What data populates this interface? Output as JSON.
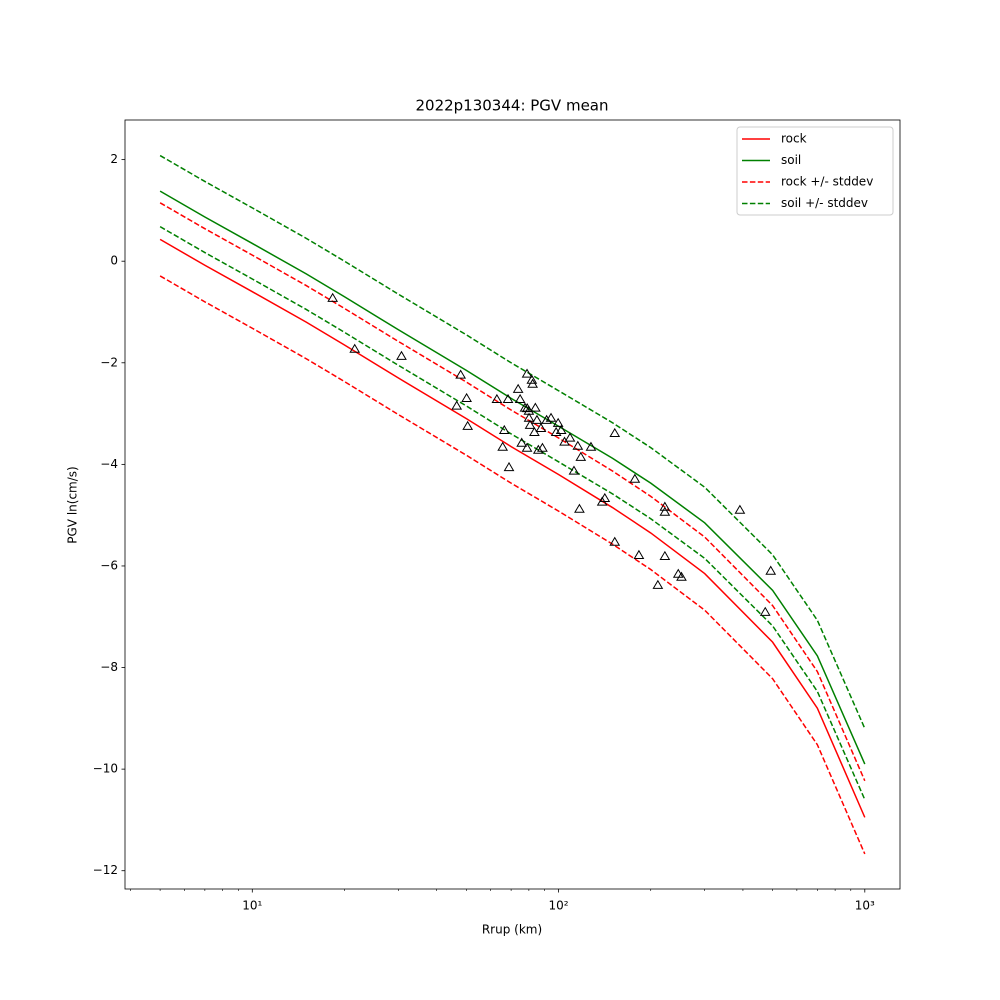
{
  "chart_data": {
    "type": "line",
    "title": "2022p130344: PGV mean",
    "x_label": "Rrup (km)",
    "y_label": "PGV ln(cm/s)",
    "x_scale": "log",
    "minor_ticks": true,
    "xlim": [
      3.84,
      1303
    ],
    "ylim": [
      -12.36,
      2.78
    ],
    "xticks": [
      {
        "value": 10,
        "label": "10¹"
      },
      {
        "value": 100,
        "label": "10²"
      },
      {
        "value": 1000,
        "label": "10³"
      }
    ],
    "yticks": [
      {
        "value": -12,
        "label": "−12"
      },
      {
        "value": -10,
        "label": "−10"
      },
      {
        "value": -8,
        "label": "−8"
      },
      {
        "value": -6,
        "label": "−6"
      },
      {
        "value": -4,
        "label": "−4"
      },
      {
        "value": -2,
        "label": "−2"
      },
      0,
      2
    ],
    "legend": "upper right",
    "x": [
      5,
      7,
      10,
      15,
      20,
      30,
      50,
      70,
      100,
      150,
      200,
      300,
      500,
      700,
      1000
    ],
    "series": [
      {
        "name": "rock",
        "color": "#ff0000",
        "dashed": false,
        "values": [
          0.43,
          -0.08,
          -0.6,
          -1.2,
          -1.65,
          -2.3,
          -3.1,
          -3.65,
          -4.2,
          -4.85,
          -5.35,
          -6.15,
          -7.5,
          -8.8,
          -10.95
        ]
      },
      {
        "name": "soil",
        "color": "#008000",
        "dashed": false,
        "values": [
          1.38,
          0.87,
          0.35,
          -0.25,
          -0.7,
          -1.35,
          -2.15,
          -2.7,
          -3.25,
          -3.88,
          -4.37,
          -5.15,
          -6.48,
          -7.77,
          -9.9
        ]
      },
      {
        "name": "rock +/- stddev",
        "color": "#ff0000",
        "dashed": true,
        "upper": [
          1.15,
          0.64,
          0.12,
          -0.48,
          -0.93,
          -1.58,
          -2.38,
          -2.93,
          -3.48,
          -4.13,
          -4.63,
          -5.43,
          -6.78,
          -8.08,
          -10.23
        ],
        "lower": [
          -0.29,
          -0.8,
          -1.32,
          -1.92,
          -2.37,
          -3.02,
          -3.82,
          -4.37,
          -4.92,
          -5.57,
          -6.07,
          -6.87,
          -8.22,
          -9.52,
          -11.67
        ]
      },
      {
        "name": "soil +/- stddev",
        "color": "#008000",
        "dashed": true,
        "upper": [
          2.08,
          1.57,
          1.05,
          0.45,
          0.0,
          -0.65,
          -1.45,
          -2.0,
          -2.55,
          -3.18,
          -3.67,
          -4.45,
          -5.78,
          -7.07,
          -9.2
        ],
        "lower": [
          0.68,
          0.17,
          -0.35,
          -0.95,
          -1.4,
          -2.05,
          -2.85,
          -3.4,
          -3.95,
          -4.58,
          -5.07,
          -5.85,
          -7.18,
          -8.47,
          -10.6
        ]
      }
    ],
    "scatter": {
      "color": "#000000",
      "x": [
        18.3,
        21.6,
        30.7,
        47.9,
        50.1,
        46.5,
        50.5,
        62.9,
        68.4,
        73.8,
        74.9,
        78.9,
        81.8,
        82.3,
        77.7,
        79,
        80,
        80.1,
        84,
        66.5,
        65.7,
        68.9,
        75.8,
        78.9,
        80.7,
        83.4,
        85,
        87.6,
        85.9,
        88.6,
        91.4,
        94.5,
        98.2,
        99.7,
        102,
        104.6,
        109,
        112.3,
        115.6,
        118.2,
        117,
        127.6,
        152.6,
        152.6,
        138.8,
        141.6,
        177.5,
        183,
        211,
        222.4,
        222.4,
        222.4,
        246,
        252,
        391,
        473,
        493
      ],
      "values": [
        -0.73,
        -1.73,
        -1.87,
        -2.24,
        -2.7,
        -2.85,
        -3.25,
        -2.72,
        -2.72,
        -2.52,
        -2.72,
        -2.22,
        -2.34,
        -2.42,
        -2.89,
        -2.9,
        -2.95,
        -3.09,
        -2.89,
        -3.33,
        -3.66,
        -4.06,
        -3.58,
        -3.68,
        -3.23,
        -3.37,
        -3.13,
        -3.29,
        -3.72,
        -3.68,
        -3.13,
        -3.09,
        -3.37,
        -3.19,
        -3.33,
        -3.56,
        -3.48,
        -4.13,
        -3.64,
        -3.86,
        -4.88,
        -3.66,
        -3.39,
        -5.53,
        -4.74,
        -4.67,
        -4.29,
        -5.79,
        -6.38,
        -4.84,
        -4.94,
        -5.81,
        -6.16,
        -6.22,
        -4.9,
        -6.91,
        -6.1
      ]
    }
  }
}
